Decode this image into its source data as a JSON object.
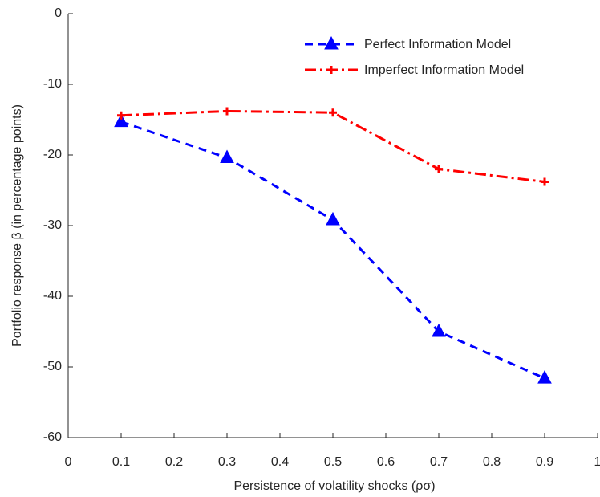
{
  "chart_data": {
    "type": "line",
    "xlabel": "Persistence of volatility shocks (ρσ)",
    "ylabel": "Portfolio response β (in percentage points)",
    "x": [
      0.1,
      0.3,
      0.5,
      0.7,
      0.9
    ],
    "series": [
      {
        "name": "Perfect Information Model",
        "color": "#0000ff",
        "marker": "triangle",
        "linestyle": "dashed",
        "values": [
          -15.3,
          -20.4,
          -29.2,
          -45.0,
          -51.6
        ]
      },
      {
        "name": "Imperfect Information Model",
        "color": "#ff0000",
        "marker": "plus",
        "linestyle": "dashdot",
        "values": [
          -14.4,
          -13.8,
          -14.0,
          -22.0,
          -23.8
        ]
      }
    ],
    "xlim": [
      0,
      1
    ],
    "xticks": [
      0,
      0.1,
      0.2,
      0.3,
      0.4,
      0.5,
      0.6,
      0.7,
      0.8,
      0.9,
      1
    ],
    "ylim": [
      -60,
      0
    ],
    "yticks": [
      0,
      -10,
      -20,
      -30,
      -40,
      -50,
      -60
    ],
    "grid": false,
    "legend": "upper right"
  }
}
